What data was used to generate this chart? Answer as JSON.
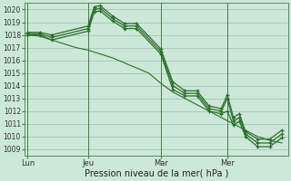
{
  "background_color": "#cce8d8",
  "grid_color": "#a0c0a8",
  "line_color": "#2d6e2d",
  "ylim": [
    1008.5,
    1020.5
  ],
  "yticks": [
    1009,
    1010,
    1011,
    1012,
    1013,
    1014,
    1015,
    1016,
    1017,
    1018,
    1019,
    1020
  ],
  "xlabel": "Pression niveau de la mer( hPa )",
  "xtick_labels": [
    "Lun",
    "Jeu",
    "Mar",
    "Mer"
  ],
  "xtick_positions": [
    0,
    10,
    22,
    33
  ],
  "vline_positions": [
    0,
    10,
    22,
    33
  ],
  "xlim": [
    -0.5,
    43
  ],
  "series": [
    {
      "x": [
        0,
        2,
        4,
        6,
        8,
        10,
        12,
        14,
        16,
        18,
        20,
        22,
        24,
        26,
        28,
        30,
        32,
        34,
        36,
        38,
        40,
        42
      ],
      "y": [
        1018.0,
        1017.9,
        1017.6,
        1017.3,
        1017.0,
        1016.8,
        1016.5,
        1016.2,
        1015.8,
        1015.4,
        1015.0,
        1014.2,
        1013.5,
        1013.0,
        1012.5,
        1012.0,
        1011.5,
        1011.0,
        1010.5,
        1010.0,
        1009.7,
        1009.5
      ],
      "has_markers": false,
      "linewidth": 0.8
    },
    {
      "x": [
        0,
        2,
        4,
        10,
        11,
        12,
        14,
        16,
        18,
        22,
        24,
        26,
        28,
        30,
        32,
        33,
        34,
        35,
        36,
        38,
        40,
        42
      ],
      "y": [
        1018.1,
        1018.1,
        1017.8,
        1018.5,
        1020.0,
        1020.1,
        1019.3,
        1018.7,
        1018.7,
        1016.7,
        1014.0,
        1013.4,
        1013.4,
        1012.2,
        1012.0,
        1013.0,
        1011.2,
        1011.5,
        1010.2,
        1009.5,
        1009.5,
        1010.2
      ],
      "has_markers": true,
      "linewidth": 0.9
    },
    {
      "x": [
        0,
        2,
        4,
        10,
        11,
        12,
        14,
        16,
        18,
        22,
        24,
        26,
        28,
        30,
        32,
        33,
        34,
        35,
        36,
        38,
        40,
        42
      ],
      "y": [
        1018.0,
        1018.0,
        1017.6,
        1018.3,
        1019.8,
        1019.9,
        1019.1,
        1018.5,
        1018.5,
        1016.5,
        1013.7,
        1013.2,
        1013.2,
        1012.0,
        1011.8,
        1012.0,
        1010.9,
        1011.2,
        1010.0,
        1009.2,
        1009.2,
        1009.9
      ],
      "has_markers": true,
      "linewidth": 0.9
    },
    {
      "x": [
        0,
        2,
        4,
        10,
        11,
        12,
        14,
        16,
        18,
        22,
        24,
        26,
        28,
        30,
        32,
        33,
        34,
        35,
        36,
        38,
        40,
        42
      ],
      "y": [
        1018.2,
        1018.2,
        1018.0,
        1018.7,
        1020.2,
        1020.3,
        1019.5,
        1018.9,
        1018.9,
        1016.9,
        1014.3,
        1013.6,
        1013.6,
        1012.4,
        1012.2,
        1013.3,
        1011.5,
        1011.8,
        1010.4,
        1009.8,
        1009.8,
        1010.5
      ],
      "has_markers": true,
      "linewidth": 0.9
    }
  ]
}
